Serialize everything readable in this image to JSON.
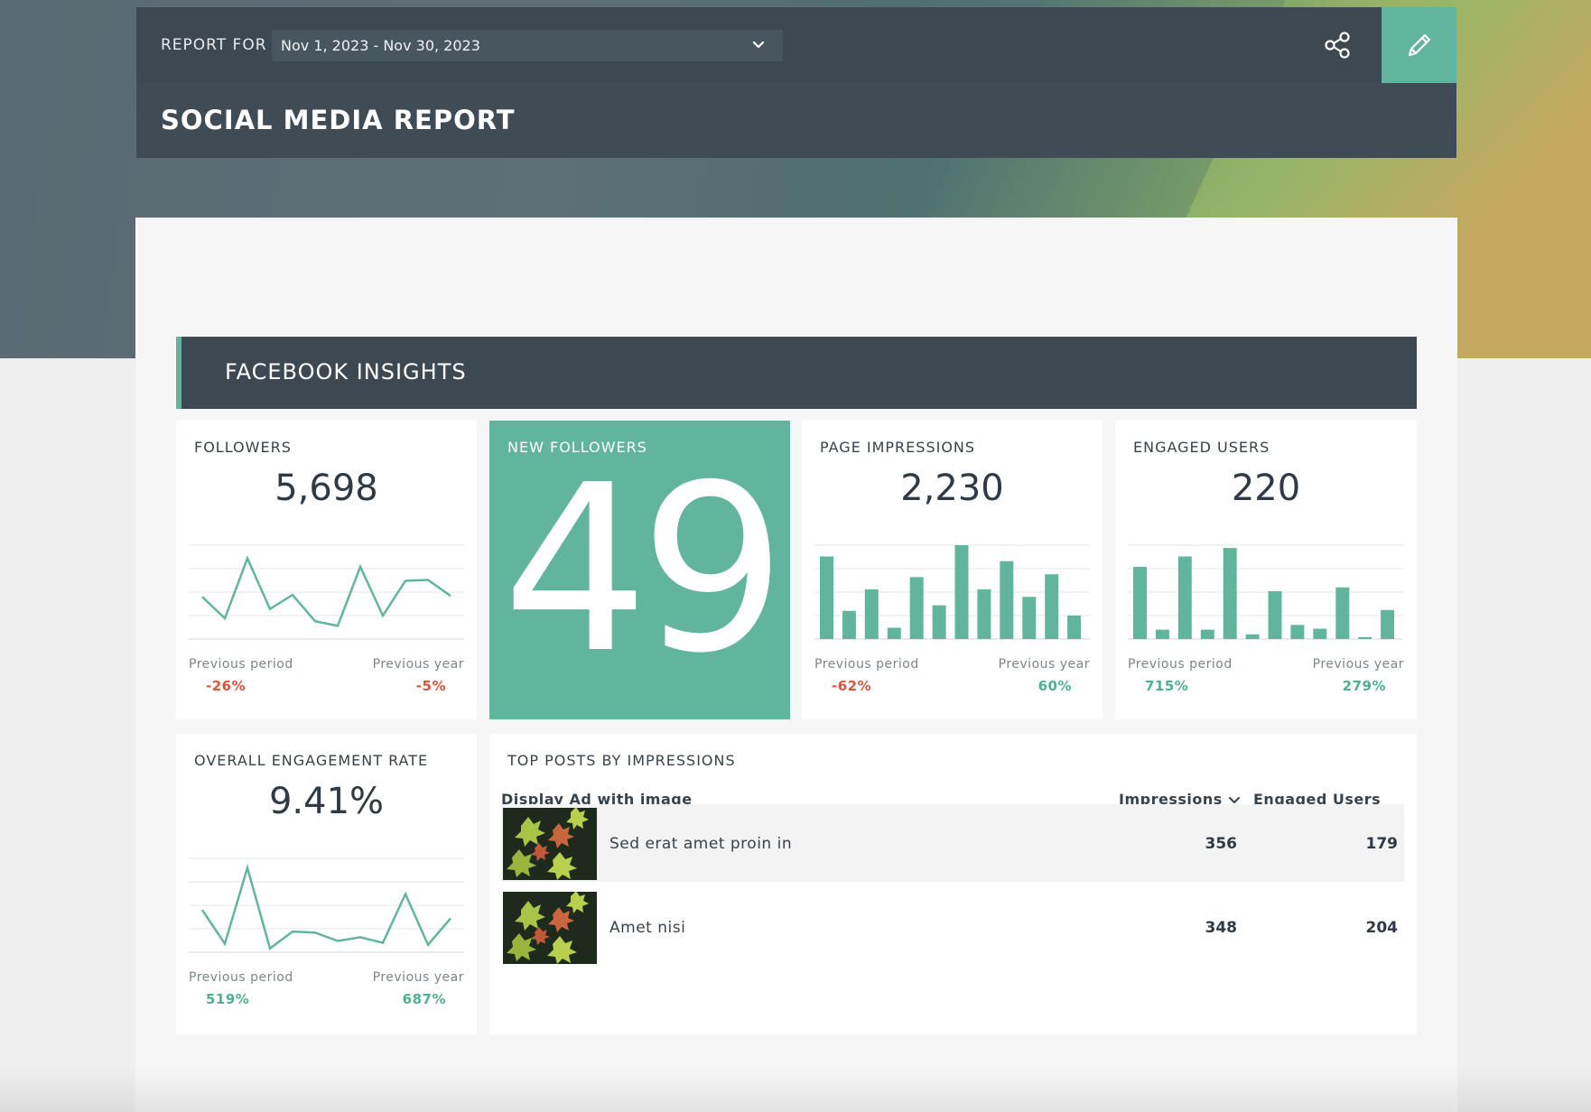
{
  "header": {
    "report_for_label": "REPORT FOR",
    "date_range": "Nov 1, 2023 - Nov 30, 2023",
    "title": "SOCIAL MEDIA REPORT"
  },
  "section": {
    "title": "FACEBOOK INSIGHTS"
  },
  "cards": {
    "followers": {
      "title": "FOLLOWERS",
      "value": "5,698",
      "prev_period_label": "Previous period",
      "prev_period_value": "-26%",
      "prev_year_label": "Previous year",
      "prev_year_value": "-5%",
      "trend": [
        45,
        22,
        86,
        32,
        47,
        19,
        14,
        77,
        25,
        62,
        63,
        46
      ]
    },
    "new_followers": {
      "title": "NEW FOLLOWERS",
      "value": "49"
    },
    "page_impressions": {
      "title": "PAGE IMPRESSIONS",
      "value": "2,230",
      "prev_period_label": "Previous period",
      "prev_period_value": "-62%",
      "prev_year_label": "Previous year",
      "prev_year_value": "60%",
      "bars": [
        88,
        30,
        53,
        12,
        66,
        36,
        100,
        53,
        83,
        45,
        69,
        25
      ]
    },
    "engaged_users": {
      "title": "ENGAGED USERS",
      "value": "220",
      "prev_period_label": "Previous period",
      "prev_period_value": "715%",
      "prev_year_label": "Previous year",
      "prev_year_value": "279%",
      "bars": [
        77,
        10,
        88,
        10,
        97,
        5,
        51,
        15,
        11,
        55,
        2,
        31
      ]
    },
    "engagement_rate": {
      "title": "OVERALL ENGAGEMENT RATE",
      "value": "9.41%",
      "prev_period_label": "Previous period",
      "prev_period_value": "519%",
      "prev_year_label": "Previous year",
      "prev_year_value": "687%",
      "trend": [
        45,
        9,
        90,
        4,
        22,
        21,
        12,
        16,
        10,
        62,
        8,
        36
      ]
    }
  },
  "top_posts": {
    "title": "TOP POSTS BY IMPRESSIONS",
    "col_post": "Display Ad with image",
    "col_impressions": "Impressions",
    "col_engaged": "Engaged Users",
    "rows": [
      {
        "text": "Sed erat amet proin in",
        "impressions": "356",
        "engaged": "179"
      },
      {
        "text": "Amet nisi",
        "impressions": "348",
        "engaged": "204"
      }
    ]
  },
  "icons": {
    "share": "share-icon",
    "edit": "pencil-icon",
    "dropdown": "chevron-down-icon",
    "sort": "chevron-down-icon"
  },
  "colors": {
    "accent": "#62b59d",
    "header_dark": "#3c4953",
    "negative": "#d9533f",
    "positive": "#4fb090"
  }
}
